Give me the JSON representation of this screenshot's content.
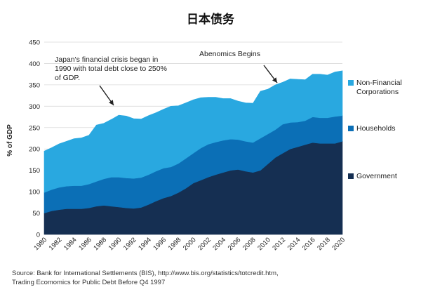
{
  "chart_data": {
    "type": "area",
    "stacked": true,
    "title": "日本债务",
    "ylabel": "% of GDP",
    "xlabel": "",
    "ylim": [
      0,
      450
    ],
    "y_ticks": [
      0,
      50,
      100,
      150,
      200,
      250,
      300,
      350,
      400,
      450
    ],
    "x_tick_labels": [
      "1980",
      "1982",
      "1984",
      "1986",
      "1988",
      "1990",
      "1992",
      "1994",
      "1996",
      "1998",
      "2000",
      "2002",
      "2004",
      "2006",
      "2008",
      "2010",
      "2012",
      "2014",
      "2016",
      "2018",
      "2020"
    ],
    "x": [
      1980,
      1981,
      1982,
      1983,
      1984,
      1985,
      1986,
      1987,
      1988,
      1989,
      1990,
      1991,
      1992,
      1993,
      1994,
      1995,
      1996,
      1997,
      1998,
      1999,
      2000,
      2001,
      2002,
      2003,
      2004,
      2005,
      2006,
      2007,
      2008,
      2009,
      2010,
      2011,
      2012,
      2013,
      2014,
      2015,
      2016,
      2017,
      2018,
      2019,
      2020
    ],
    "series": [
      {
        "name": "Government",
        "color": "#152f52",
        "values": [
          50,
          55,
          58,
          60,
          60,
          60,
          62,
          66,
          68,
          66,
          64,
          62,
          61,
          63,
          70,
          78,
          85,
          90,
          98,
          108,
          120,
          127,
          134,
          140,
          145,
          150,
          152,
          148,
          145,
          150,
          165,
          180,
          190,
          200,
          205,
          210,
          215,
          213,
          213,
          213,
          218
        ]
      },
      {
        "name": "Households",
        "color": "#0b6fb6",
        "values": [
          48,
          50,
          52,
          53,
          54,
          54,
          56,
          58,
          62,
          68,
          70,
          70,
          70,
          70,
          70,
          70,
          70,
          68,
          68,
          70,
          70,
          75,
          77,
          76,
          75,
          73,
          70,
          70,
          70,
          75,
          70,
          65,
          68,
          62,
          58,
          56,
          60,
          60,
          60,
          63,
          60
        ]
      },
      {
        "name": "Non-Financial Corporations",
        "color": "#29a8e0",
        "values": [
          97,
          98,
          102,
          105,
          110,
          112,
          114,
          132,
          130,
          135,
          145,
          145,
          140,
          137,
          138,
          137,
          138,
          142,
          135,
          130,
          125,
          118,
          110,
          105,
          98,
          95,
          90,
          90,
          92,
          110,
          105,
          105,
          98,
          102,
          100,
          96,
          100,
          102,
          100,
          104,
          105
        ]
      }
    ],
    "legend_placement": "right",
    "grid": "horizontal"
  },
  "annotations": {
    "crisis": {
      "lines": [
        "Japan's financial crisis began in",
        "1990 with total debt close to 250%",
        "of GDP."
      ],
      "arrow_year": 1989
    },
    "abenomics": {
      "text": "Abenomics Begins",
      "arrow_year": 2012
    }
  },
  "source": {
    "lines": [
      "Source: Bank for International Settlements (BIS), http://www.bis.org/statistics/totcredit.htm,",
      "Trading Ecomomics for Public Debt Before Q4 1997"
    ]
  }
}
